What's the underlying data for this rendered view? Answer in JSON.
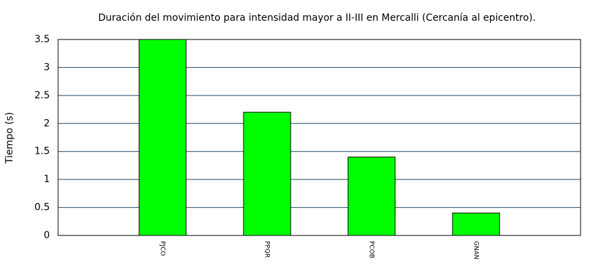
{
  "chart_data": {
    "type": "bar",
    "title": "Duración del movimiento para intensidad mayor a II-III en Mercalli (Cercanía al epicentro).",
    "y_label": "Tiempo (s)",
    "categories": [
      "PJCO",
      "PPQR",
      "PCOB",
      "GNAN"
    ],
    "values": [
      3.5,
      2.2,
      1.4,
      0.4
    ],
    "color": "#00ff00",
    "ylim": [
      0,
      3.5
    ],
    "yticks": [
      0,
      0.5,
      1,
      1.5,
      2,
      2.5,
      3,
      3.5
    ],
    "grid": true
  }
}
